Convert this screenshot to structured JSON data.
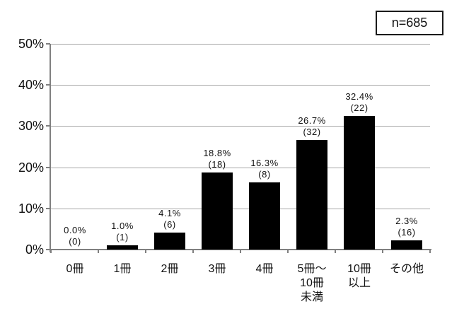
{
  "n_box": {
    "label": "n=685"
  },
  "chart_data": {
    "type": "bar",
    "title": "",
    "xlabel": "",
    "ylabel": "",
    "categories": [
      "0冊",
      "1冊",
      "2冊",
      "3冊",
      "4冊",
      "5冊～\n10冊\n未満",
      "10冊\n以上",
      "その他"
    ],
    "values": [
      0.0,
      1.0,
      4.1,
      18.8,
      16.3,
      26.7,
      32.4,
      2.3
    ],
    "value_labels": [
      "0.0%",
      "1.0%",
      "4.1%",
      "18.8%",
      "16.3%",
      "26.7%",
      "32.4%",
      "2.3%"
    ],
    "count_labels": [
      "(0)",
      "(1)",
      "(6)",
      "(18)",
      "(8)",
      "(32)",
      "(22)",
      "(16)"
    ],
    "ylim": [
      0,
      50
    ],
    "ytick_step": 10,
    "ytick_labels": [
      "0%",
      "10%",
      "20%",
      "30%",
      "40%",
      "50%"
    ],
    "grid": true,
    "legend": null,
    "annotation": "n=685",
    "bar_color": "#000000",
    "grid_color": "#a6a6a6",
    "axis_color": "#808080"
  }
}
